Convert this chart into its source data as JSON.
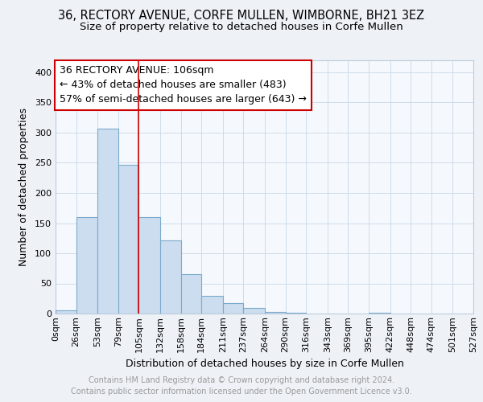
{
  "title_line1": "36, RECTORY AVENUE, CORFE MULLEN, WIMBORNE, BH21 3EZ",
  "title_line2": "Size of property relative to detached houses in Corfe Mullen",
  "xlabel": "Distribution of detached houses by size in Corfe Mullen",
  "ylabel": "Number of detached properties",
  "footer_line1": "Contains HM Land Registry data © Crown copyright and database right 2024.",
  "footer_line2": "Contains public sector information licensed under the Open Government Licence v3.0.",
  "bin_edges": [
    0,
    26,
    53,
    79,
    105,
    132,
    158,
    184,
    211,
    237,
    264,
    290,
    316,
    343,
    369,
    395,
    422,
    448,
    474,
    501,
    527
  ],
  "bin_labels": [
    "0sqm",
    "26sqm",
    "53sqm",
    "79sqm",
    "105sqm",
    "132sqm",
    "158sqm",
    "184sqm",
    "211sqm",
    "237sqm",
    "264sqm",
    "290sqm",
    "316sqm",
    "343sqm",
    "369sqm",
    "395sqm",
    "422sqm",
    "448sqm",
    "474sqm",
    "501sqm",
    "527sqm"
  ],
  "bar_heights": [
    5,
    160,
    307,
    247,
    160,
    122,
    65,
    30,
    18,
    10,
    3,
    1,
    0,
    0,
    0,
    2,
    0,
    0,
    0,
    0
  ],
  "bar_color": "#ccddf0",
  "bar_edge_color": "#7aaacb",
  "vline_x": 105,
  "vline_color": "#cc0000",
  "annotation_line1": "36 RECTORY AVENUE: 106sqm",
  "annotation_line2": "← 43% of detached houses are smaller (483)",
  "annotation_line3": "57% of semi-detached houses are larger (643) →",
  "ylim": [
    0,
    420
  ],
  "xlim": [
    0,
    527
  ],
  "yticks": [
    0,
    50,
    100,
    150,
    200,
    250,
    300,
    350,
    400
  ],
  "background_color": "#eef2f7",
  "plot_background": "#f5f8fc",
  "grid_color": "#c8d8e8",
  "title_fontsize": 10.5,
  "subtitle_fontsize": 9.5,
  "label_fontsize": 9,
  "tick_fontsize": 8,
  "footer_fontsize": 7,
  "annotation_fontsize": 9
}
